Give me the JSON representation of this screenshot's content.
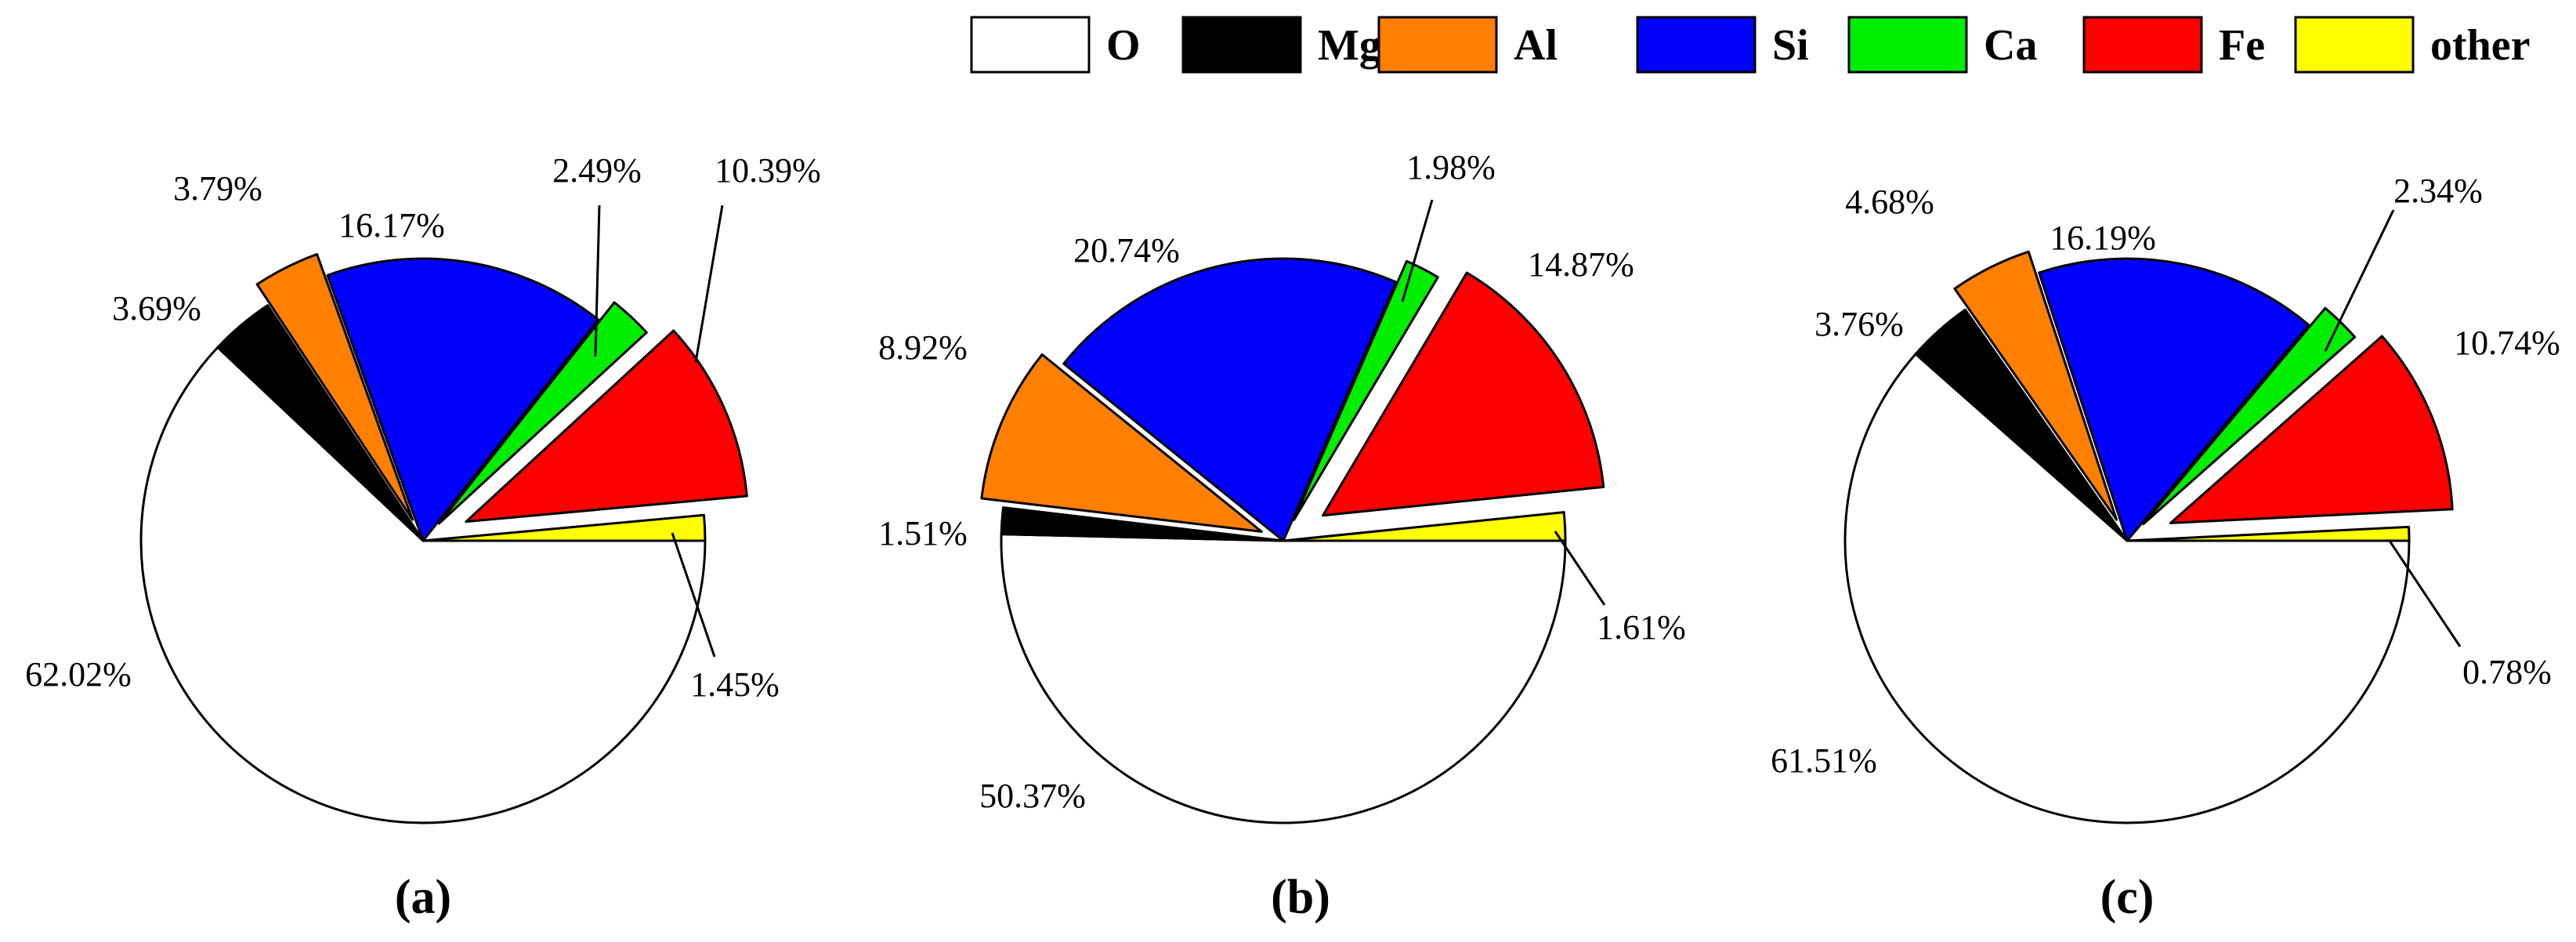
{
  "legend": [
    {
      "name": "O",
      "color": "#ffffff"
    },
    {
      "name": "Mg",
      "color": "#000000"
    },
    {
      "name": "Al",
      "color": "#ff8000"
    },
    {
      "name": "Si",
      "color": "#0000ff"
    },
    {
      "name": "Ca",
      "color": "#00ee00"
    },
    {
      "name": "Fe",
      "color": "#ff0000"
    },
    {
      "name": "other",
      "color": "#ffff00"
    }
  ],
  "chart_data": [
    {
      "type": "pie",
      "title": "(a)",
      "categories": [
        "O",
        "Mg",
        "Al",
        "Si",
        "Ca",
        "Fe",
        "other"
      ],
      "values": [
        62.02,
        3.69,
        3.79,
        16.17,
        2.49,
        10.39,
        1.45
      ],
      "labels": [
        "62.02%",
        "3.69%",
        "3.79%",
        "16.17%",
        "2.49%",
        "10.39%",
        "1.45%"
      ]
    },
    {
      "type": "pie",
      "title": "(b)",
      "categories": [
        "O",
        "Mg",
        "Al",
        "Si",
        "Ca",
        "Fe",
        "other"
      ],
      "values": [
        50.37,
        1.51,
        8.92,
        20.74,
        1.98,
        14.87,
        1.61
      ],
      "labels": [
        "50.37%",
        "1.51%",
        "8.92%",
        "20.74%",
        "1.98%",
        "14.87%",
        "1.61%"
      ]
    },
    {
      "type": "pie",
      "title": "(c)",
      "categories": [
        "O",
        "Mg",
        "Al",
        "Si",
        "Ca",
        "Fe",
        "other"
      ],
      "values": [
        61.51,
        3.76,
        4.68,
        16.19,
        2.34,
        10.74,
        0.78
      ],
      "labels": [
        "61.51%",
        "3.76%",
        "4.68%",
        "16.19%",
        "2.34%",
        "10.74%",
        "0.78%"
      ]
    }
  ]
}
